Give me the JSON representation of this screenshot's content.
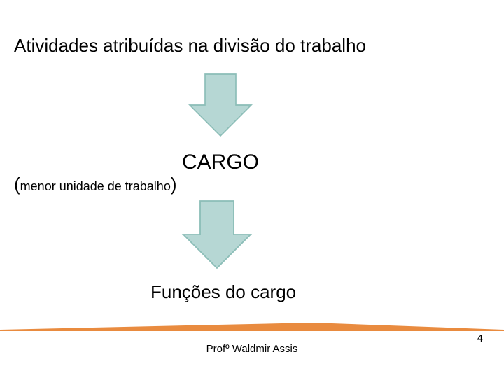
{
  "title": "Atividades atribuídas na divisão do trabalho",
  "heading": "CARGO",
  "subtitle_open": "(",
  "subtitle_body": "menor unidade de trabalho",
  "subtitle_close": ")",
  "funcoes": "Funções do cargo",
  "footer": "Profº Waldmir Assis",
  "page_number": "4",
  "arrow": {
    "fill": "#b6d7d4",
    "stroke": "#8bbdb7",
    "stroke_width": 1.5
  },
  "divider": {
    "color_left": "#e98b3f",
    "color_right": "#ef9a56",
    "peak_ratio": 0.62
  }
}
